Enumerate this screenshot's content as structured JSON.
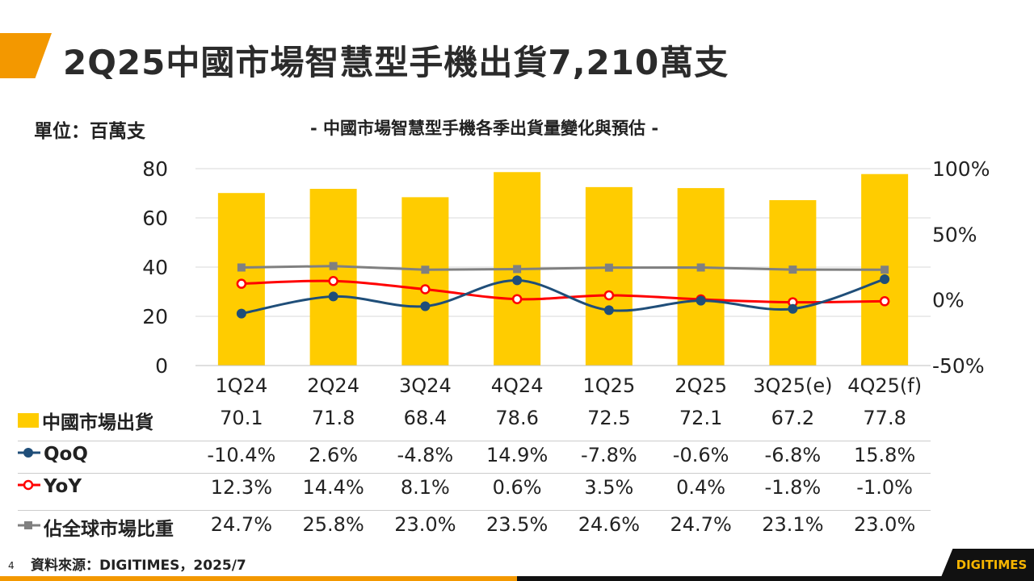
{
  "header": {
    "title": "2Q25中國市場智慧型手機出貨7,210萬支"
  },
  "chart_data": {
    "type": "bar",
    "title": "- 中國市場智慧型手機各季出貨量變化與預估 -",
    "unit_label": "單位：百萬支",
    "categories": [
      "1Q24",
      "2Q24",
      "3Q24",
      "4Q24",
      "1Q25",
      "2Q25",
      "3Q25(e)",
      "4Q25(f)"
    ],
    "left_axis": {
      "range": [
        0,
        80
      ],
      "ticks": [
        "0",
        "20",
        "40",
        "60",
        "80"
      ]
    },
    "right_axis": {
      "range": [
        -50,
        100
      ],
      "ticks": [
        "-50%",
        "0%",
        "50%",
        "100%"
      ]
    },
    "grid": true,
    "series": [
      {
        "name": "中國市場出貨",
        "kind": "bar",
        "axis": "left",
        "color": "#FFCC00",
        "values": [
          70.1,
          71.8,
          68.4,
          78.6,
          72.5,
          72.1,
          67.2,
          77.8
        ],
        "labels": [
          "70.1",
          "71.8",
          "68.4",
          "78.6",
          "72.5",
          "72.1",
          "67.2",
          "77.8"
        ]
      },
      {
        "name": "QoQ",
        "kind": "line",
        "smooth": true,
        "axis": "right",
        "color": "#1F4E79",
        "values": [
          -10.4,
          2.6,
          -4.8,
          14.9,
          -7.8,
          -0.6,
          -6.8,
          15.8
        ],
        "labels": [
          "-10.4%",
          "2.6%",
          "-4.8%",
          "14.9%",
          "-7.8%",
          "-0.6%",
          "-6.8%",
          "15.8%"
        ]
      },
      {
        "name": "YoY",
        "kind": "line",
        "smooth": true,
        "axis": "right",
        "color": "#FF0000",
        "values": [
          12.3,
          14.4,
          8.1,
          0.6,
          3.5,
          0.4,
          -1.8,
          -1.0
        ],
        "labels": [
          "12.3%",
          "14.4%",
          "8.1%",
          "0.6%",
          "3.5%",
          "0.4%",
          "-1.8%",
          "-1.0%"
        ]
      },
      {
        "name": "佔全球市場比重",
        "kind": "line",
        "smooth": false,
        "axis": "right",
        "color": "#808080",
        "values": [
          24.7,
          25.8,
          23.0,
          23.5,
          24.6,
          24.7,
          23.1,
          23.0
        ],
        "labels": [
          "24.7%",
          "25.8%",
          "23.0%",
          "23.5%",
          "24.6%",
          "24.7%",
          "23.1%",
          "23.0%"
        ]
      }
    ]
  },
  "footer": {
    "source": "資料來源：DIGITIMES，2025/7",
    "page": "4",
    "logo": "DIGITIMES"
  }
}
